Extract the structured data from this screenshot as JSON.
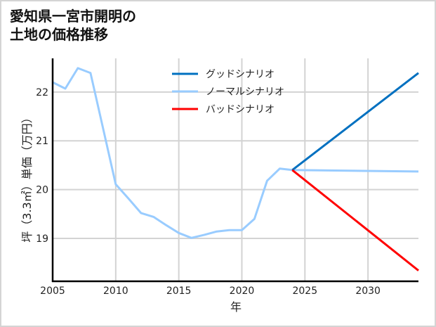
{
  "title": {
    "line1": "愛知県一宮市開明の",
    "line2": "土地の価格推移"
  },
  "colors": {
    "good": "#0070c0",
    "normal": "#99ccff",
    "bad": "#ff0000",
    "grid": "#d3d3d3",
    "axis": "#000000",
    "frame": "#d4d4d4"
  },
  "chart_data": {
    "type": "line",
    "title": "愛知県一宮市開明の土地の価格推移",
    "xlabel": "年",
    "ylabel": "坪（3.3㎡）単価（万円）",
    "xlim": [
      2005,
      2034
    ],
    "ylim": [
      18.12,
      22.69
    ],
    "x_ticks": [
      2005,
      2010,
      2015,
      2020,
      2025,
      2030
    ],
    "y_ticks": [
      19,
      20,
      21,
      22
    ],
    "grid": true,
    "legend_position": "upper center",
    "series": [
      {
        "name": "グッドシナリオ",
        "color": "#0070c0",
        "x": [
          2024,
          2034
        ],
        "values": [
          20.4,
          22.39
        ]
      },
      {
        "name": "ノーマルシナリオ",
        "color": "#99ccff",
        "x": [
          2005,
          2006,
          2007,
          2008,
          2009,
          2010,
          2011,
          2012,
          2013,
          2014,
          2015,
          2016,
          2017,
          2018,
          2019,
          2020,
          2021,
          2022,
          2023,
          2024,
          2034
        ],
        "values": [
          22.2,
          22.07,
          22.49,
          22.39,
          21.25,
          20.11,
          19.82,
          19.52,
          19.44,
          19.27,
          19.11,
          19.01,
          19.07,
          19.14,
          19.17,
          19.17,
          19.4,
          20.18,
          20.43,
          20.4,
          20.37
        ]
      },
      {
        "name": "バッドシナリオ",
        "color": "#ff0000",
        "x": [
          2024,
          2034
        ],
        "values": [
          20.4,
          18.34
        ]
      }
    ]
  }
}
